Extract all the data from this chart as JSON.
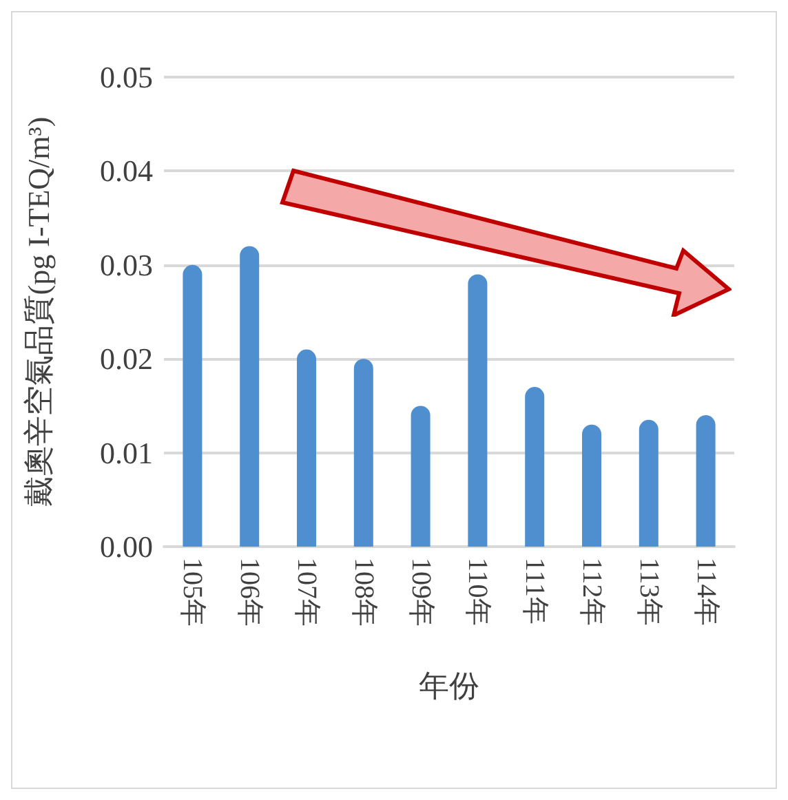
{
  "chart_data": {
    "type": "bar",
    "xlabel": "年份",
    "ylabel": "戴奧辛空氣品質(pg I-TEQ/m³)",
    "categories": [
      "105年",
      "106年",
      "107年",
      "108年",
      "109年",
      "110年",
      "111年",
      "112年",
      "113年",
      "114年"
    ],
    "values": [
      0.03,
      0.032,
      0.021,
      0.02,
      0.015,
      0.029,
      0.017,
      0.013,
      0.0135,
      0.014
    ],
    "color": "#4f8fd0",
    "ylim": [
      0,
      0.05
    ],
    "yticks": [
      {
        "value": 0,
        "label": "0.00"
      },
      {
        "value": 0.01,
        "label": "0.01"
      },
      {
        "value": 0.02,
        "label": "0.02"
      },
      {
        "value": 0.03,
        "label": "0.03"
      },
      {
        "value": 0.04,
        "label": "0.04"
      },
      {
        "value": 0.05,
        "label": "0.05"
      }
    ],
    "grid": "y"
  }
}
